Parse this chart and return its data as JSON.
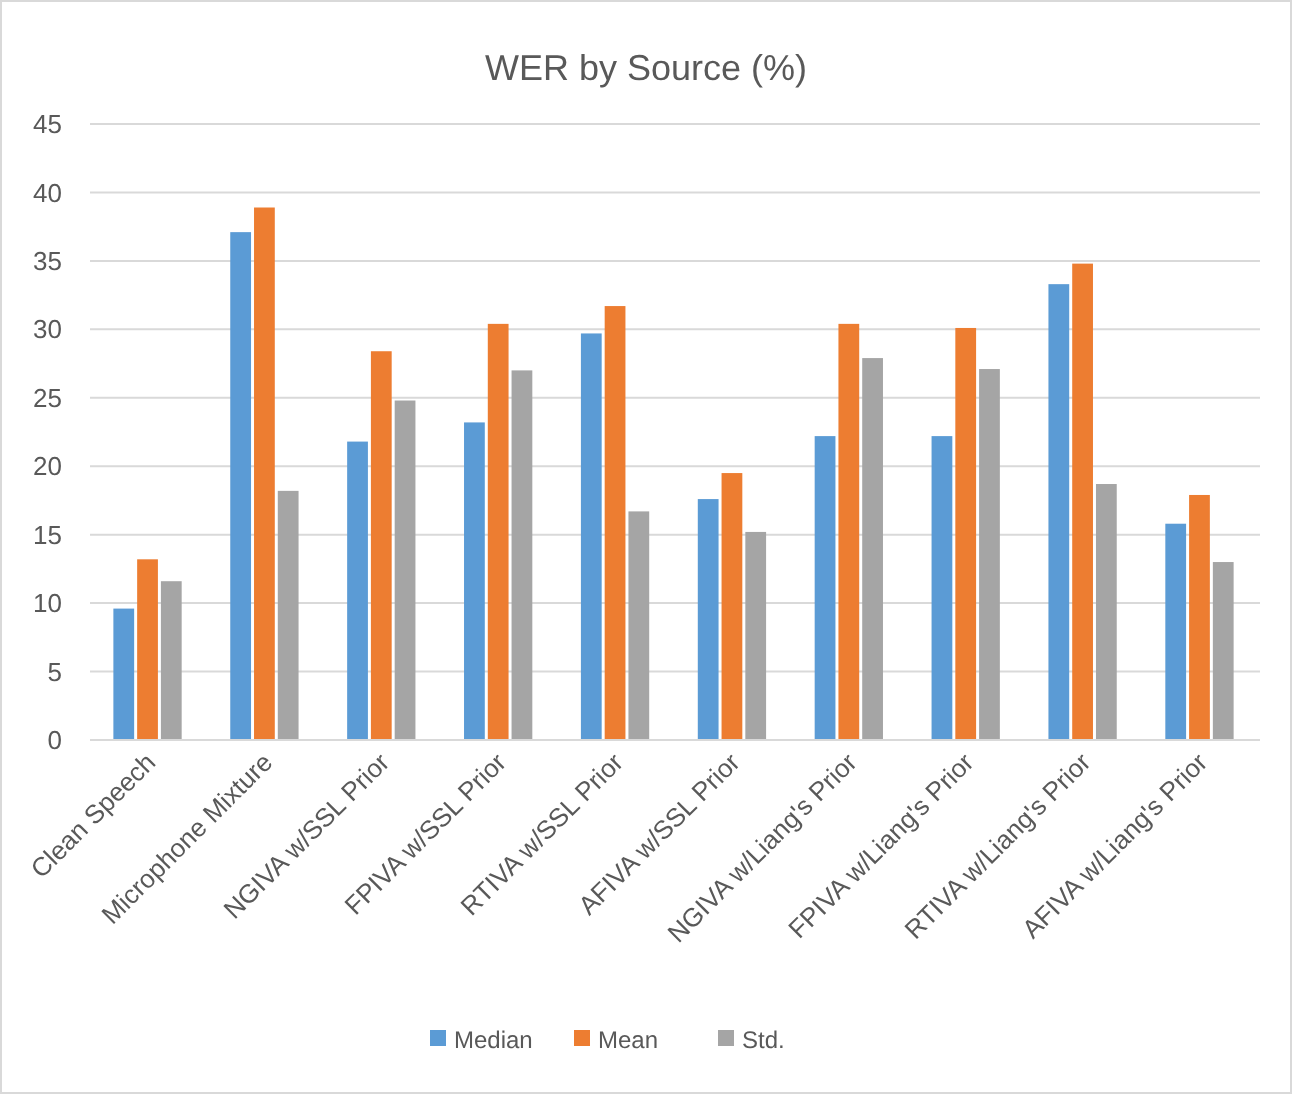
{
  "chart_data": {
    "type": "bar",
    "title": "WER by Source (%)",
    "categories": [
      "Clean Speech",
      "Microphone Mixture",
      "NGIVA w/SSL Prior",
      "FPIVA w/SSL Prior",
      "RTIVA w/SSL Prior",
      "AFIVA w/SSL Prior",
      "NGIVA w/Liang's Prior",
      "FPIVA w/Liang's Prior",
      "RTIVA w/Liang's Prior",
      "AFIVA w/Liang's Prior"
    ],
    "series": [
      {
        "name": "Median",
        "color": "#5b9bd5",
        "values": [
          9.6,
          37.1,
          21.8,
          23.2,
          29.7,
          17.6,
          22.2,
          22.2,
          33.3,
          15.8
        ]
      },
      {
        "name": "Mean",
        "color": "#ed7d31",
        "values": [
          13.2,
          38.9,
          28.4,
          30.4,
          31.7,
          19.5,
          30.4,
          30.1,
          34.8,
          17.9
        ]
      },
      {
        "name": "Std.",
        "color": "#a5a5a5",
        "values": [
          11.6,
          18.2,
          24.8,
          27.0,
          16.7,
          15.2,
          27.9,
          27.1,
          18.7,
          13.0
        ]
      }
    ],
    "ylim": [
      0,
      45
    ],
    "yticks": [
      0,
      5,
      10,
      15,
      20,
      25,
      30,
      35,
      40,
      45
    ],
    "grid": "y",
    "legend": "bottom"
  }
}
